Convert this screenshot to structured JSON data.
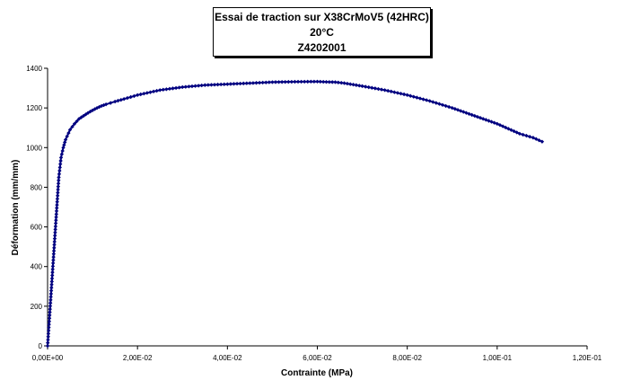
{
  "chart_data": {
    "type": "scatter",
    "title_lines": [
      "Essai de traction sur X38CrMoV5 (42HRC)",
      "20°C",
      "Z4202001"
    ],
    "xlabel": "Contrainte (MPa)",
    "ylabel": "Déformation (mm/mm)",
    "xlim": [
      0,
      0.12
    ],
    "ylim": [
      0,
      1400
    ],
    "x_ticks": [
      0,
      0.02,
      0.04,
      0.06,
      0.08,
      0.1,
      0.12
    ],
    "x_tick_labels": [
      "0,00E+00",
      "2,00E-02",
      "4,00E-02",
      "6,00E-02",
      "8,00E-02",
      "1,00E-01",
      "1,20E-01"
    ],
    "y_ticks": [
      0,
      200,
      400,
      600,
      800,
      1000,
      1200,
      1400
    ],
    "y_tick_labels": [
      "0",
      "200",
      "400",
      "600",
      "800",
      "1000",
      "1200",
      "1400"
    ],
    "grid": false,
    "legend": false,
    "series_color": "#000080",
    "series": [
      {
        "x": [
          0,
          0.0005,
          0.001,
          0.0015,
          0.002,
          0.0025,
          0.003,
          0.0035,
          0.004,
          0.005,
          0.006,
          0.007,
          0.008,
          0.009,
          0.01,
          0.011,
          0.012,
          0.013,
          0.014,
          0.015,
          0.017,
          0.02,
          0.025,
          0.03,
          0.035,
          0.04,
          0.045,
          0.05,
          0.055,
          0.06,
          0.062,
          0.064,
          0.066,
          0.07,
          0.075,
          0.08,
          0.085,
          0.09,
          0.095,
          0.1,
          0.105,
          0.108,
          0.11
        ],
        "y": [
          0,
          170,
          340,
          510,
          680,
          850,
          950,
          1000,
          1040,
          1090,
          1120,
          1145,
          1160,
          1175,
          1188,
          1200,
          1210,
          1218,
          1225,
          1232,
          1245,
          1265,
          1290,
          1305,
          1315,
          1320,
          1325,
          1330,
          1332,
          1333,
          1331,
          1330,
          1325,
          1310,
          1290,
          1265,
          1235,
          1200,
          1160,
          1120,
          1070,
          1050,
          1030
        ]
      }
    ]
  }
}
